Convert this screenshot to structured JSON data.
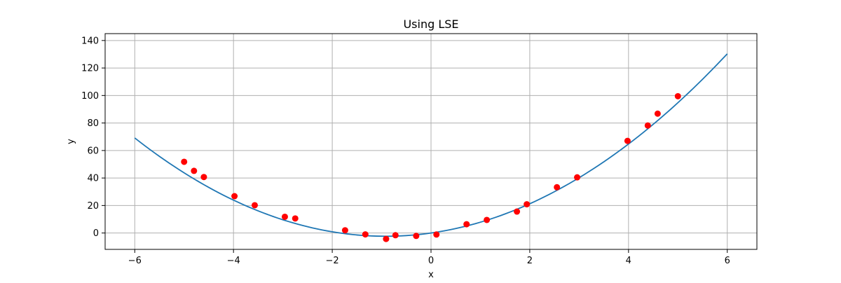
{
  "chart_data": {
    "type": "scatter",
    "title": "Using LSE",
    "xlabel": "x",
    "ylabel": "y",
    "xlim": [
      -6.6,
      6.6
    ],
    "ylim": [
      -11.9,
      145
    ],
    "grid": true,
    "x_ticks": [
      -6,
      -4,
      -2,
      0,
      2,
      4,
      6
    ],
    "x_tick_labels": [
      "−6",
      "−4",
      "−2",
      "0",
      "2",
      "4",
      "6"
    ],
    "y_ticks": [
      0,
      20,
      40,
      60,
      80,
      100,
      120,
      140
    ],
    "y_tick_labels": [
      "0",
      "20",
      "40",
      "60",
      "80",
      "100",
      "120",
      "140"
    ],
    "series": [
      {
        "kind": "line",
        "color": "#1f77b4",
        "fit": {
          "a": 2.77,
          "b": 5.1,
          "c": 0.0
        },
        "x_range": [
          -6,
          6
        ]
      },
      {
        "kind": "scatter",
        "color": "#ff0000",
        "points": [
          [
            -5.0,
            51.8
          ],
          [
            -4.8,
            45.2
          ],
          [
            -4.6,
            40.7
          ],
          [
            -3.98,
            26.8
          ],
          [
            -3.57,
            20.2
          ],
          [
            -2.96,
            11.8
          ],
          [
            -2.75,
            10.6
          ],
          [
            -1.74,
            2.0
          ],
          [
            -1.33,
            -1.0
          ],
          [
            -0.91,
            -4.3
          ],
          [
            -0.72,
            -1.6
          ],
          [
            -0.3,
            -2.1
          ],
          [
            0.11,
            -1.1
          ],
          [
            0.72,
            6.4
          ],
          [
            1.13,
            9.5
          ],
          [
            1.74,
            15.6
          ],
          [
            1.94,
            20.9
          ],
          [
            2.55,
            33.3
          ],
          [
            2.96,
            40.5
          ],
          [
            3.98,
            67.0
          ],
          [
            4.39,
            78.2
          ],
          [
            4.59,
            86.8
          ],
          [
            5.0,
            99.5
          ]
        ]
      }
    ]
  }
}
